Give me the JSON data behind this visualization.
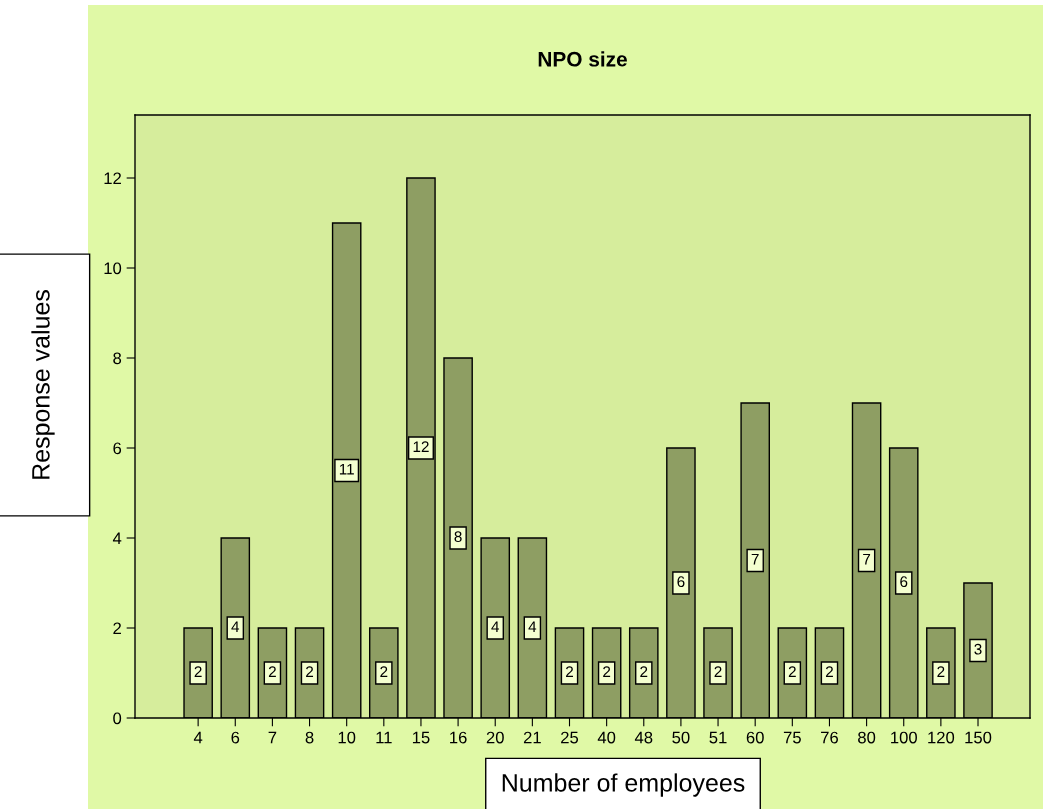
{
  "chart_data": {
    "type": "bar",
    "title": "NPO size",
    "xlabel": "Number of employees",
    "ylabel": "Response values",
    "categories": [
      "4",
      "6",
      "7",
      "8",
      "10",
      "11",
      "15",
      "16",
      "20",
      "21",
      "25",
      "40",
      "48",
      "50",
      "51",
      "60",
      "75",
      "76",
      "80",
      "100",
      "120",
      "150"
    ],
    "values": [
      2,
      4,
      2,
      2,
      11,
      2,
      12,
      8,
      4,
      4,
      2,
      2,
      2,
      6,
      2,
      7,
      2,
      2,
      7,
      6,
      2,
      3
    ],
    "color": "#8e9e63",
    "ylim": [
      0,
      13.4
    ],
    "yticks": [
      0,
      2,
      4,
      6,
      8,
      10,
      12
    ],
    "grid": false,
    "data_labels": true,
    "legend": false
  }
}
